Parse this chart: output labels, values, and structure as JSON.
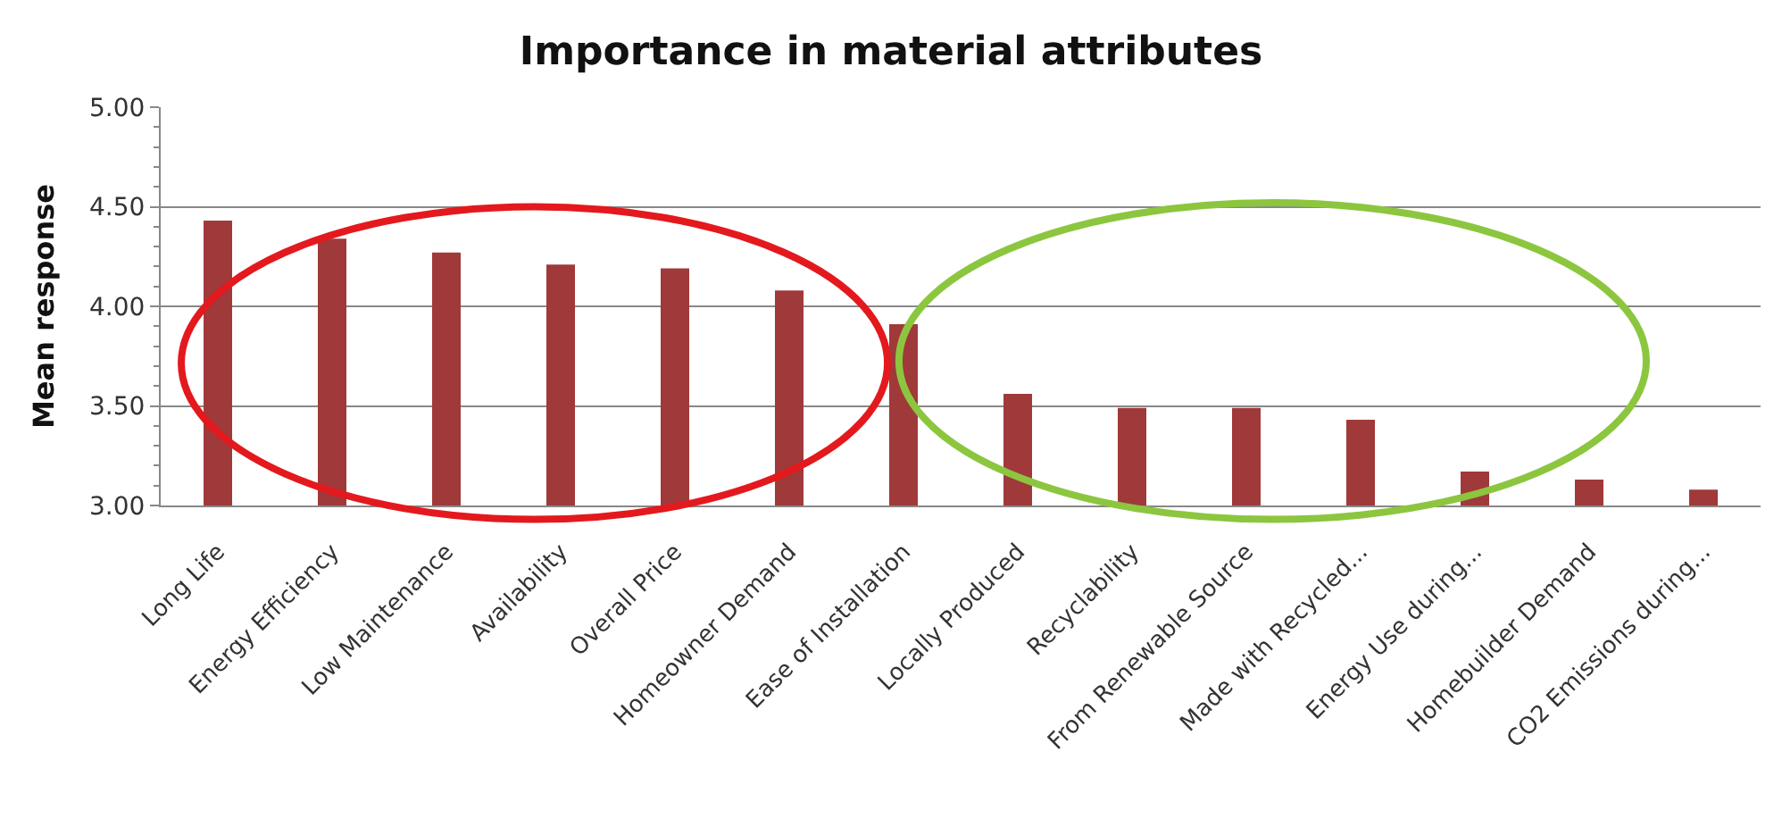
{
  "chart_data": {
    "type": "bar",
    "title": "Importance in material attributes",
    "ylabel": "Mean response",
    "categories": [
      "Long Life",
      "Energy Efficiency",
      "Low Maintenance",
      "Availability",
      "Overall Price",
      "Homeowner Demand",
      "Ease of Installation",
      "Locally Produced",
      "Recyclability",
      "From Renewable Source",
      "Made with Recycled...",
      "Energy Use during...",
      "Homebuilder Demand",
      "CO2 Emissions during..."
    ],
    "values": [
      4.43,
      4.34,
      4.27,
      4.21,
      4.19,
      4.08,
      3.91,
      3.56,
      3.49,
      3.49,
      3.43,
      3.17,
      3.13,
      3.08
    ],
    "color": "#a0393a",
    "ylim": [
      3.0,
      5.0
    ],
    "yticks": [
      {
        "value": 3.0,
        "label": "3.00"
      },
      {
        "value": 3.5,
        "label": "3.50"
      },
      {
        "value": 4.0,
        "label": "4.00"
      },
      {
        "value": 4.5,
        "label": "4.50"
      },
      {
        "value": 5.0,
        "label": "5.00"
      }
    ],
    "grid": "y"
  }
}
